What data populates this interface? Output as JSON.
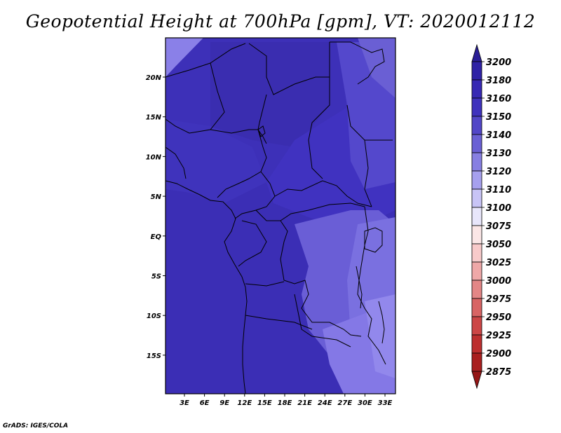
{
  "title": "Geopotential Height at 700hPa [gpm], VT: 2020012112",
  "credit": "GrADS: IGES/COLA",
  "map": {
    "lon_ticks": [
      "3E",
      "6E",
      "9E",
      "12E",
      "15E",
      "18E",
      "21E",
      "24E",
      "27E",
      "30E",
      "33E"
    ],
    "lat_ticks": [
      "20N",
      "15N",
      "10N",
      "5N",
      "EQ",
      "5S",
      "10S",
      "15S"
    ],
    "colors": {
      "ocean_south": "#3b2eb5",
      "north_field": "#3d30b8",
      "west_africa": "#3f33bc",
      "sahara": "#3a2db0",
      "sudan": "#4032c0",
      "east": "#5448cc",
      "congo": "#6a5ed6",
      "east_africa": "#7a70e0",
      "south_plateau": "#8478e6",
      "lake_region": "#9288ec",
      "corner_ne": "#6a5fd4",
      "corner_nw": "#8a80e8"
    }
  },
  "colorbar": {
    "labels": [
      "3200",
      "3180",
      "3160",
      "3150",
      "3140",
      "3130",
      "3120",
      "3110",
      "3100",
      "3075",
      "3050",
      "3025",
      "3000",
      "2975",
      "2950",
      "2925",
      "2900",
      "2875"
    ],
    "colors": [
      "#2a1e96",
      "#2f22a6",
      "#3729b4",
      "#3f32bd",
      "#5246c7",
      "#6a60d4",
      "#877fe2",
      "#a6a0ee",
      "#c8c4f6",
      "#e8e6fb",
      "#fbe6e6",
      "#f8caca",
      "#efa8a8",
      "#e38686",
      "#d86464",
      "#cc4646",
      "#bd2f2f",
      "#a91f1f",
      "#951616"
    ]
  }
}
